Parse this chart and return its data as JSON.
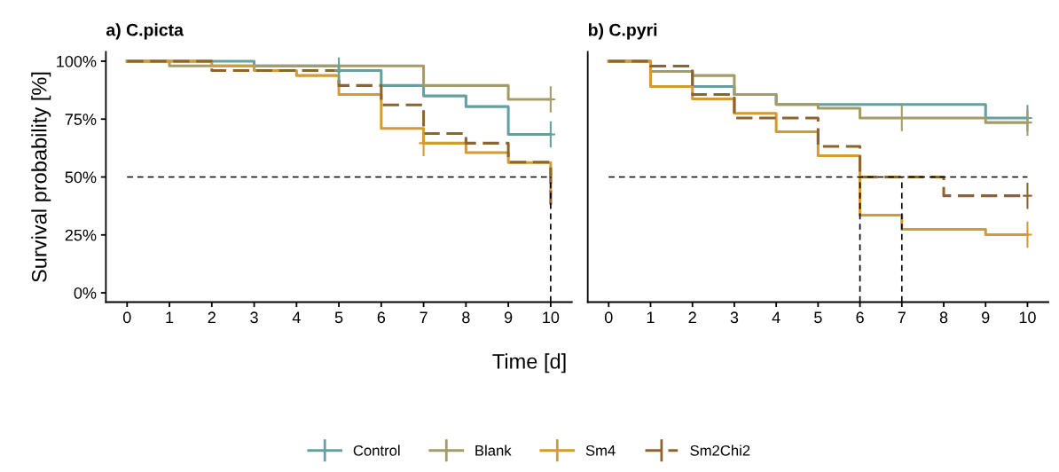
{
  "chart_data": [
    {
      "type": "step",
      "title": "a) C.picta",
      "xlabel": "Time [d]",
      "ylabel": "Survival probability [%]",
      "legend": "bottom",
      "grid": false,
      "x": [
        0,
        1,
        2,
        3,
        4,
        5,
        6,
        7,
        8,
        9,
        10
      ],
      "xlim": [
        -0.5,
        10.5
      ],
      "xticks": [
        0,
        1,
        2,
        3,
        4,
        5,
        6,
        7,
        8,
        9,
        10
      ],
      "ylim": [
        -4,
        104
      ],
      "yticks": [
        {
          "value": 0,
          "label": "0%"
        },
        {
          "value": 25,
          "label": "25%"
        },
        {
          "value": 50,
          "label": "50%"
        },
        {
          "value": 75,
          "label": "75%"
        },
        {
          "value": 100,
          "label": "100%"
        }
      ],
      "series": [
        {
          "name": "Control",
          "color": "#65a0a0",
          "line_style": "solid",
          "values": [
            100,
            100,
            100,
            98,
            98,
            96,
            89.5,
            85,
            80.4,
            68.4,
            68.4
          ]
        },
        {
          "name": "Blank",
          "color": "#a39c68",
          "line_style": "solid",
          "values": [
            100,
            98,
            98,
            98,
            98,
            98,
            98,
            89.5,
            89.5,
            83.5,
            83.5
          ]
        },
        {
          "name": "Sm4",
          "color": "#d49a33",
          "line_style": "solid",
          "values": [
            100,
            100,
            98,
            96,
            93.8,
            85.6,
            71,
            64.6,
            60.5,
            56.2,
            44
          ]
        },
        {
          "name": "Sm2Chi2",
          "color": "#8b6430",
          "line_style": "dashed",
          "values": [
            100,
            100,
            96,
            96,
            96,
            89.5,
            81.1,
            68.8,
            64.6,
            56.4,
            38
          ]
        },
        {
          "type": "scatter",
          "marker": "cross",
          "color": "#65a0a0",
          "x": [
            5,
            10
          ],
          "values": [
            96,
            68.4
          ]
        },
        {
          "type": "scatter",
          "marker": "cross",
          "color": "#a39c68",
          "x": [
            10
          ],
          "values": [
            83.5
          ]
        },
        {
          "type": "scatter",
          "marker": "cross",
          "color": "#d49a33",
          "x": [
            7
          ],
          "values": [
            64.6
          ]
        }
      ],
      "ref_lines": [
        {
          "axis": "y",
          "value": 50,
          "line_style": "dashed",
          "color": "#000000"
        },
        {
          "axis": "x",
          "value": 10,
          "line_style": "dashed",
          "color": "#000000"
        }
      ]
    },
    {
      "type": "step",
      "title": "b) C.pyri",
      "legend": false,
      "grid": false,
      "tick_labels": "x",
      "x": [
        0,
        1,
        2,
        3,
        4,
        5,
        6,
        7,
        8,
        9,
        10
      ],
      "xlim": [
        -0.5,
        10.5
      ],
      "xticks": [
        0,
        1,
        2,
        3,
        4,
        5,
        6,
        7,
        8,
        9,
        10
      ],
      "ylim": [
        -4,
        104
      ],
      "series": [
        {
          "name": "Control",
          "color": "#65a0a0",
          "line_style": "solid",
          "values": [
            100,
            95.6,
            89.1,
            85.6,
            81.3,
            81.3,
            81.3,
            81.3,
            81.3,
            75.5,
            75.5
          ]
        },
        {
          "name": "Blank",
          "color": "#a39c68",
          "line_style": "solid",
          "values": [
            100,
            95.6,
            93.8,
            85.6,
            81.3,
            79.7,
            75.5,
            75.5,
            75.5,
            73.5,
            73.5
          ]
        },
        {
          "name": "Sm4",
          "color": "#d49a33",
          "line_style": "solid",
          "values": [
            100,
            89.1,
            83.7,
            77.5,
            69.5,
            59.2,
            33.5,
            27.4,
            27.4,
            25.1,
            25.1
          ]
        },
        {
          "name": "Sm2Chi2",
          "color": "#8b6430",
          "line_style": "dashed",
          "values": [
            100,
            97.9,
            85.6,
            75.5,
            75.5,
            63.2,
            50,
            50,
            41.9,
            41.9,
            41.9
          ]
        },
        {
          "type": "scatter",
          "marker": "cross",
          "color": "#65a0a0",
          "x": [
            10
          ],
          "values": [
            75.5
          ]
        },
        {
          "type": "scatter",
          "marker": "cross",
          "color": "#a39c68",
          "x": [
            7,
            10
          ],
          "values": [
            75.5,
            73.5
          ]
        },
        {
          "type": "scatter",
          "marker": "cross",
          "color": "#d49a33",
          "x": [
            10
          ],
          "values": [
            25.1
          ]
        },
        {
          "type": "scatter",
          "marker": "cross",
          "color": "#8b6430",
          "x": [
            10
          ],
          "values": [
            41.9
          ]
        }
      ],
      "ref_lines": [
        {
          "axis": "y",
          "value": 50,
          "line_style": "dashed",
          "color": "#000000"
        },
        {
          "axis": "x",
          "value": 6,
          "line_style": "dashed",
          "color": "#000000"
        },
        {
          "axis": "x",
          "value": 7,
          "line_style": "dashed",
          "color": "#000000"
        }
      ]
    }
  ]
}
